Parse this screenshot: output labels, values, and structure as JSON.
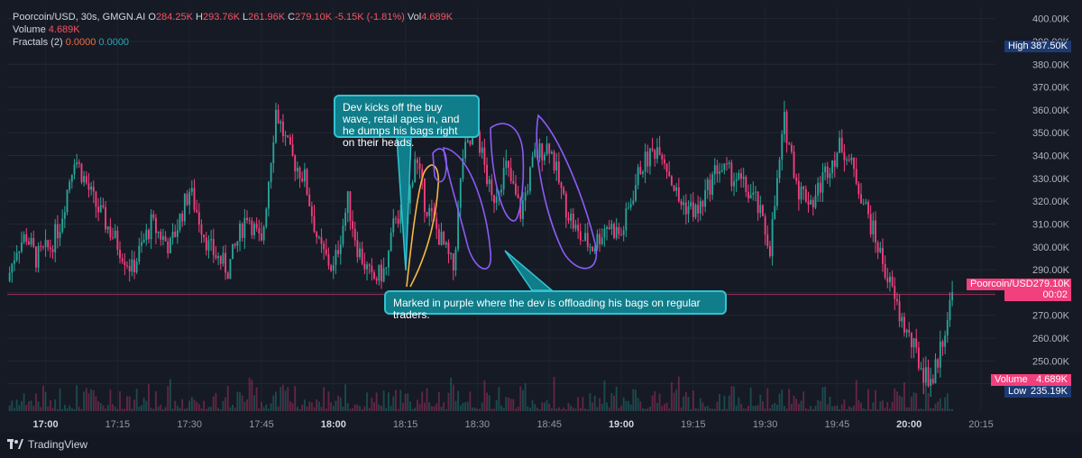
{
  "header": {
    "symbol_line": "Poorcoin/USD, 30s, GMGN.AI",
    "open_label": "O",
    "open_value": "284.25K",
    "high_label": "H",
    "high_value": "293.76K",
    "low_label": "L",
    "low_value": "261.96K",
    "close_label": "C",
    "close_value": "279.10K",
    "change_value": "-5.15K (-1.81%)",
    "vol_label": "Vol",
    "vol_value": "4.689K",
    "volume_label": "Volume",
    "volume_value": "4.689K",
    "fractals_label": "Fractals (2)",
    "fractals_v1": "0.0000",
    "fractals_v2": "0.0000"
  },
  "annotations": {
    "top_note": "Dev kicks off the buy wave, retail apes in, and he dumps his bags right on their heads.",
    "bottom_note": "Marked in purple where the dev is offloading his bags on regular traders."
  },
  "price_tags": {
    "high_label": "High",
    "high_value": "387.50K",
    "current_label": "Poorcoin/USD",
    "current_value": "279.10K",
    "countdown": "00:02",
    "volume_label": "Volume",
    "volume_value": "4.689K",
    "low_label": "Low",
    "low_value": "235.19K"
  },
  "branding": {
    "name": "TradingView"
  },
  "colors": {
    "background": "#161a25",
    "up": "#26a69a",
    "down": "#f23f7d",
    "callout": "#0f7d8a",
    "purple_marker": "#8b5cf6",
    "orange_marker": "#f5b942"
  },
  "chart_data": {
    "type": "candlestick",
    "symbol": "Poorcoin/USD",
    "interval": "30s",
    "y_unit": "K USD",
    "ylim": [
      228,
      405
    ],
    "y_ticks": [
      240,
      250,
      260,
      270,
      280,
      290,
      300,
      310,
      320,
      330,
      340,
      350,
      360,
      370,
      380,
      390,
      400
    ],
    "y_tick_labels": [
      "240.00K",
      "250.00K",
      "260.00K",
      "270.00K",
      "280.00K",
      "290.00K",
      "300.00K",
      "310.00K",
      "320.00K",
      "330.00K",
      "340.00K",
      "350.00K",
      "360.00K",
      "370.00K",
      "380.00K",
      "390.00K",
      "400.00K"
    ],
    "x_ticks": [
      "17:00",
      "17:15",
      "17:30",
      "17:45",
      "18:00",
      "18:15",
      "18:30",
      "18:45",
      "19:00",
      "19:15",
      "19:30",
      "19:45",
      "20:00",
      "20:15"
    ],
    "x_tick_bold": [
      "17:00",
      "18:00",
      "19:00",
      "20:00"
    ],
    "x_range_minutes": [
      1012,
      1218
    ],
    "x_tick_minutes": [
      1020,
      1035,
      1050,
      1065,
      1080,
      1095,
      1110,
      1125,
      1140,
      1155,
      1170,
      1185,
      1200,
      1215
    ],
    "current_price": 279.1,
    "high": 387.5,
    "low": 235.19,
    "path_minutes": [
      1012,
      1014,
      1016,
      1018,
      1021,
      1023,
      1026,
      1030,
      1034,
      1038,
      1042,
      1046,
      1050,
      1054,
      1058,
      1062,
      1065,
      1068,
      1071,
      1074,
      1077,
      1080,
      1083,
      1085,
      1088,
      1091,
      1093,
      1095,
      1097,
      1099,
      1101,
      1103,
      1105,
      1107,
      1110,
      1113,
      1116,
      1119,
      1122,
      1125,
      1128,
      1131,
      1134,
      1137,
      1140,
      1144,
      1148,
      1152,
      1156,
      1160,
      1164,
      1168,
      1171,
      1174,
      1177,
      1180,
      1183,
      1186,
      1189,
      1192,
      1195,
      1198,
      1201,
      1203,
      1205,
      1207,
      1209
    ],
    "path_prices": [
      285,
      300,
      305,
      295,
      300,
      310,
      340,
      320,
      305,
      290,
      310,
      300,
      325,
      300,
      290,
      315,
      300,
      360,
      340,
      330,
      300,
      290,
      320,
      300,
      285,
      290,
      315,
      310,
      340,
      320,
      310,
      300,
      290,
      340,
      350,
      320,
      335,
      315,
      340,
      345,
      320,
      305,
      300,
      310,
      305,
      335,
      345,
      320,
      315,
      335,
      330,
      320,
      300,
      355,
      325,
      320,
      335,
      345,
      330,
      310,
      290,
      270,
      255,
      245,
      242,
      260,
      279
    ]
  }
}
